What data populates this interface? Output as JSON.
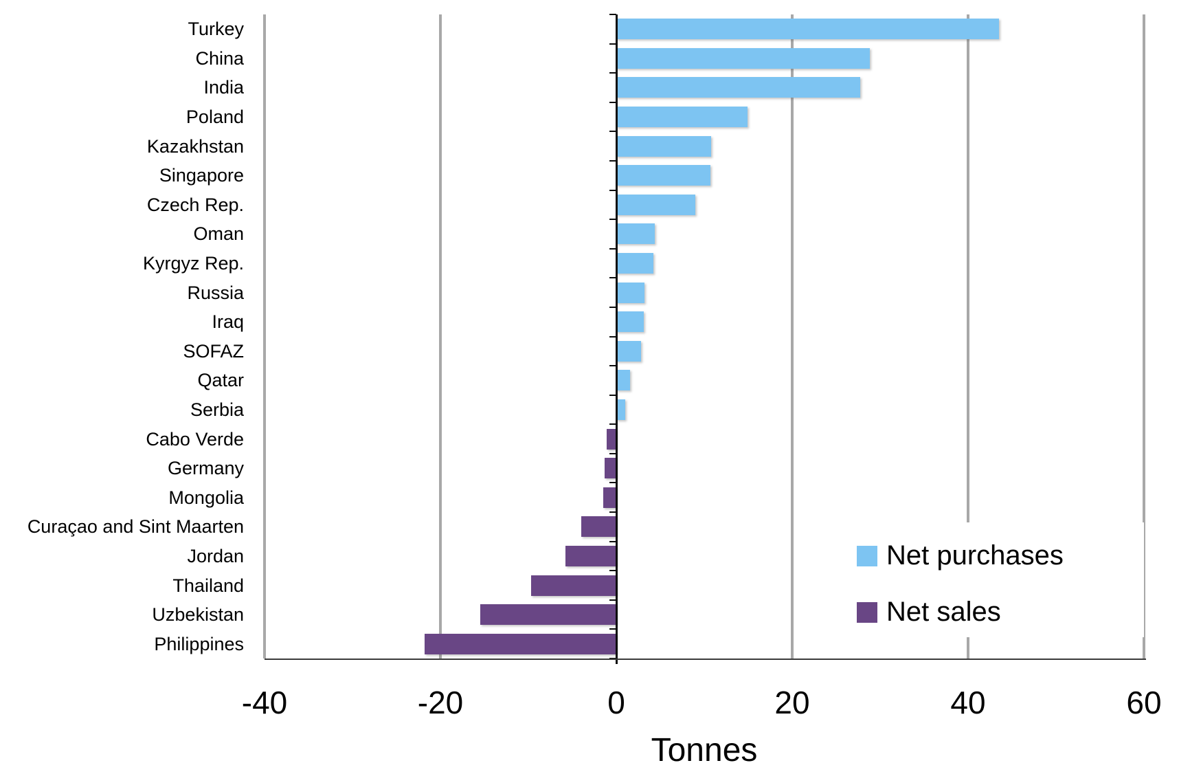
{
  "chart_data": {
    "type": "bar",
    "orientation": "horizontal",
    "title": "",
    "xlabel": "Tonnes",
    "xlim": [
      -40,
      60
    ],
    "x_ticks": [
      -40,
      -20,
      0,
      20,
      40,
      60
    ],
    "grid": true,
    "legend_position": "lower right",
    "legend": [
      {
        "label": "Net purchases",
        "color": "#7dc4f2"
      },
      {
        "label": "Net sales",
        "color": "#694685"
      }
    ],
    "categories": [
      "Turkey",
      "China",
      "India",
      "Poland",
      "Kazakhstan",
      "Singapore",
      "Czech Rep.",
      "Oman",
      "Kyrgyz Rep.",
      "Russia",
      "Iraq",
      "SOFAZ",
      "Qatar",
      "Serbia",
      "Cabo Verde",
      "Germany",
      "Mongolia",
      "Curaçao and Sint Maarten",
      "Jordan",
      "Thailand",
      "Uzbekistan",
      "Philippines"
    ],
    "values": [
      43.5,
      28.8,
      27.7,
      14.9,
      10.8,
      10.7,
      9.0,
      4.4,
      4.2,
      3.2,
      3.1,
      2.8,
      1.6,
      1.0,
      -1.1,
      -1.3,
      -1.5,
      -4.0,
      -5.8,
      -9.7,
      -15.5,
      -21.8
    ],
    "colors": {
      "positive": "#7dc4f2",
      "negative": "#694685",
      "gridline": "#a8a8a8",
      "axis": "#0d0d0d",
      "text": "#000000"
    }
  }
}
